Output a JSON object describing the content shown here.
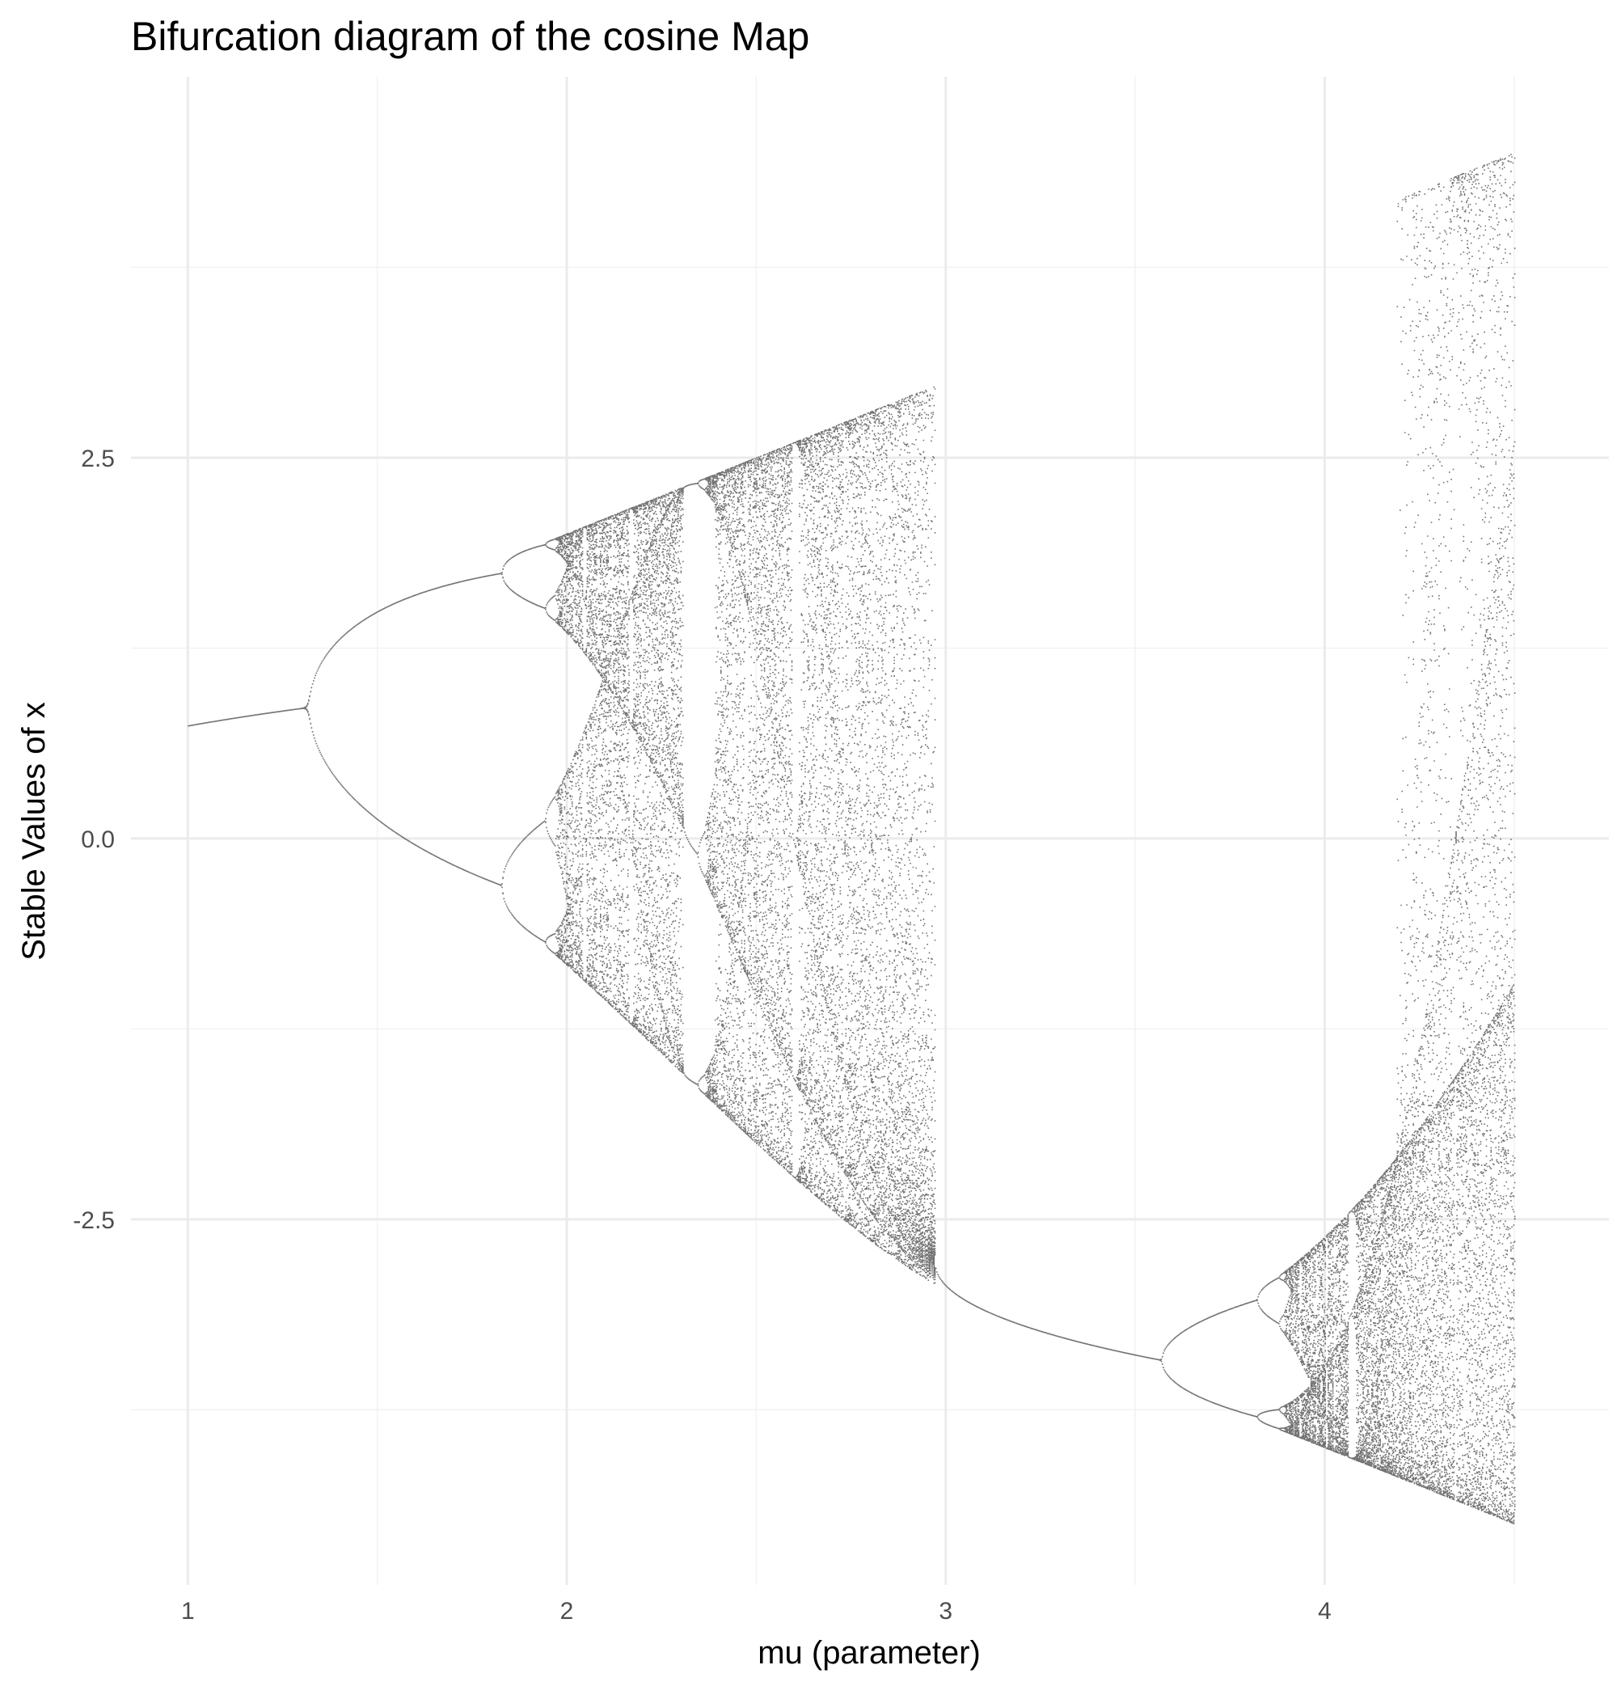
{
  "chart_data": {
    "type": "scatter",
    "title": "Bifurcation diagram of the cosine Map",
    "xlabel": "mu (parameter)",
    "ylabel": "Stable Values of x",
    "xlim": [
      0.85,
      4.75
    ],
    "ylim": [
      -4.9,
      5.0
    ],
    "x_ticks": [
      1,
      2,
      3,
      4
    ],
    "x_tick_labels": [
      "1",
      "2",
      "3",
      "4"
    ],
    "y_ticks": [
      -2.5,
      0.0,
      2.5
    ],
    "y_tick_labels": [
      "-2.5",
      "0.0",
      "2.5"
    ],
    "x_minor": [
      1.5,
      2.5,
      3.5,
      4.5
    ],
    "y_minor": [
      -3.75,
      -1.25,
      1.25,
      3.75
    ],
    "grid": true,
    "legend": "none",
    "point_color": "#000000",
    "series": [
      {
        "x_range": [
          1.0,
          4.5
        ],
        "points_sample": [
          [
            1.0,
            0.74
          ],
          [
            1.3,
            0.87
          ],
          [
            1.35,
            0.5
          ],
          [
            1.35,
            1.15
          ],
          [
            1.8,
            -0.28
          ],
          [
            1.8,
            1.76
          ],
          [
            1.85,
            -0.5
          ],
          [
            1.85,
            1.95
          ],
          [
            1.9,
            0.0
          ],
          [
            1.9,
            1.5
          ],
          [
            1.9,
            -0.65
          ],
          [
            1.9,
            -0.05
          ],
          [
            2.3,
            2.3
          ],
          [
            2.3,
            -1.55
          ],
          [
            2.96,
            2.96
          ],
          [
            2.96,
            -2.92
          ],
          [
            3.5,
            -3.5
          ],
          [
            3.85,
            -2.9
          ],
          [
            3.85,
            -3.9
          ],
          [
            4.17,
            4.2
          ],
          [
            4.5,
            4.5
          ],
          [
            4.5,
            -4.5
          ],
          [
            4.5,
            -0.9
          ]
        ]
      }
    ]
  }
}
